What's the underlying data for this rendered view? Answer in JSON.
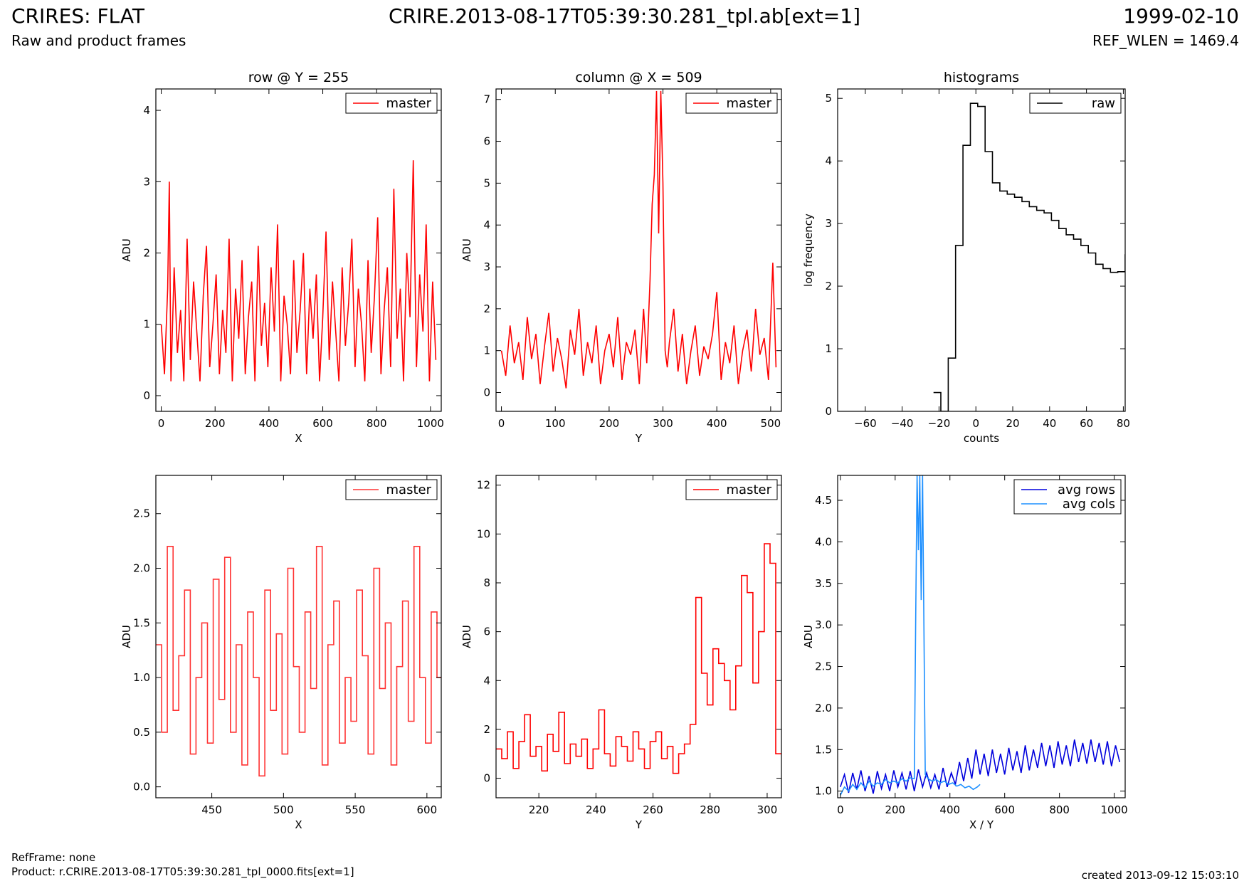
{
  "header": {
    "title": "CRIRES: FLAT",
    "subtitle": "Raw and product frames",
    "file_label": "CRIRE.2013-08-17T05:39:30.281_tpl.ab[ext=1]",
    "date": "1999-02-10",
    "ref_wlen": "REF_WLEN = 1469.4"
  },
  "footer": {
    "ref_frame": "RefFrame: none",
    "product": "Product: r.CRIRE.2013-08-17T05:39:30.281_tpl_0000.fits[ext=1]",
    "created": "created 2013-09-12 15:03:10"
  },
  "colors": {
    "master": "#ff0000",
    "master_zoom": "#ff3333",
    "raw": "#000000",
    "avg_rows": "#0000dd",
    "avg_cols": "#1e90ff"
  },
  "chart_data": [
    {
      "id": "row",
      "type": "line",
      "title": "row @ Y = 255",
      "xlabel": "X",
      "ylabel": "ADU",
      "xlim": [
        -20,
        1040
      ],
      "ylim": [
        -0.22,
        4.3
      ],
      "xticks": [
        0,
        200,
        400,
        600,
        800,
        1000
      ],
      "yticks": [
        0,
        1,
        2,
        3,
        4
      ],
      "legend": [
        "master"
      ],
      "legend_placement": "top-right",
      "series": [
        {
          "name": "master",
          "color": "#ff0000",
          "step": false,
          "x": [
            0,
            12,
            24,
            30,
            36,
            48,
            60,
            72,
            84,
            96,
            108,
            120,
            132,
            144,
            156,
            168,
            180,
            192,
            204,
            216,
            228,
            240,
            252,
            264,
            276,
            288,
            300,
            312,
            324,
            336,
            348,
            360,
            372,
            384,
            396,
            408,
            420,
            432,
            444,
            456,
            468,
            480,
            492,
            504,
            516,
            528,
            540,
            552,
            564,
            576,
            588,
            600,
            612,
            624,
            636,
            648,
            660,
            672,
            684,
            696,
            708,
            720,
            732,
            744,
            756,
            768,
            780,
            792,
            804,
            816,
            828,
            840,
            852,
            864,
            876,
            888,
            900,
            912,
            924,
            936,
            948,
            960,
            972,
            984,
            996,
            1008,
            1020
          ],
          "y": [
            1.0,
            0.3,
            1.5,
            3.0,
            0.2,
            1.8,
            0.6,
            1.2,
            0.2,
            2.2,
            0.5,
            1.6,
            0.9,
            0.2,
            1.4,
            2.1,
            0.4,
            1.0,
            1.7,
            0.3,
            1.2,
            0.6,
            2.2,
            0.2,
            1.5,
            0.8,
            1.9,
            0.3,
            1.1,
            1.6,
            0.2,
            2.1,
            0.7,
            1.3,
            0.4,
            1.8,
            0.9,
            2.4,
            0.2,
            1.4,
            1.0,
            0.3,
            1.9,
            0.6,
            1.2,
            2.0,
            0.3,
            1.5,
            0.8,
            1.7,
            0.2,
            1.1,
            2.3,
            0.5,
            1.6,
            0.9,
            0.2,
            1.8,
            0.7,
            1.3,
            2.2,
            0.4,
            1.5,
            1.0,
            0.2,
            1.9,
            0.6,
            1.4,
            2.5,
            0.3,
            1.2,
            1.8,
            0.4,
            2.9,
            0.8,
            1.5,
            0.2,
            2.0,
            1.1,
            3.3,
            0.4,
            1.7,
            0.9,
            2.4,
            0.2,
            1.6,
            0.5
          ]
        }
      ]
    },
    {
      "id": "column",
      "type": "line",
      "title": "column @ X = 509",
      "xlabel": "Y",
      "ylabel": "ADU",
      "xlim": [
        -10,
        520
      ],
      "ylim": [
        -0.45,
        7.25
      ],
      "xticks": [
        0,
        100,
        200,
        300,
        400,
        500
      ],
      "yticks": [
        0,
        1,
        2,
        3,
        4,
        5,
        6,
        7
      ],
      "legend": [
        "master"
      ],
      "legend_placement": "top-right",
      "series": [
        {
          "name": "master",
          "color": "#ff0000",
          "step": false,
          "x": [
            0,
            8,
            16,
            24,
            32,
            40,
            48,
            56,
            64,
            72,
            80,
            88,
            96,
            104,
            112,
            120,
            128,
            136,
            144,
            152,
            160,
            168,
            176,
            184,
            192,
            200,
            208,
            216,
            224,
            232,
            240,
            248,
            256,
            264,
            270,
            276,
            280,
            284,
            288,
            292,
            296,
            300,
            304,
            308,
            312,
            320,
            328,
            336,
            344,
            352,
            360,
            368,
            376,
            384,
            392,
            400,
            408,
            416,
            424,
            432,
            440,
            448,
            456,
            464,
            472,
            480,
            488,
            496,
            504,
            510
          ],
          "y": [
            1.0,
            0.4,
            1.6,
            0.7,
            1.2,
            0.3,
            1.8,
            0.8,
            1.4,
            0.2,
            1.1,
            1.9,
            0.5,
            1.3,
            0.8,
            0.1,
            1.5,
            0.9,
            2.0,
            0.4,
            1.2,
            0.7,
            1.6,
            0.2,
            1.0,
            1.4,
            0.6,
            1.8,
            0.3,
            1.2,
            0.9,
            1.5,
            0.2,
            2.0,
            0.7,
            2.7,
            4.5,
            5.2,
            7.2,
            3.8,
            7.2,
            5.0,
            1.0,
            0.6,
            1.2,
            2.0,
            0.5,
            1.4,
            0.2,
            1.0,
            1.6,
            0.4,
            1.1,
            0.8,
            1.4,
            2.4,
            0.3,
            1.2,
            0.7,
            1.6,
            0.2,
            1.0,
            1.5,
            0.5,
            2.0,
            0.9,
            1.3,
            0.3,
            3.1,
            0.6
          ]
        }
      ]
    },
    {
      "id": "histograms",
      "type": "line",
      "title": "histograms",
      "xlabel": "counts",
      "ylabel": "log frequency",
      "xlim": [
        -75,
        81
      ],
      "ylim": [
        0,
        5.15
      ],
      "xticks": [
        -60,
        -40,
        -20,
        0,
        20,
        40,
        60,
        80
      ],
      "yticks": [
        0,
        1,
        2,
        3,
        4,
        5
      ],
      "legend": [
        "raw"
      ],
      "legend_placement": "top-right",
      "series": [
        {
          "name": "raw",
          "color": "#000000",
          "step": true,
          "x": [
            -23,
            -19,
            -15,
            -11,
            -7,
            -3,
            1,
            5,
            9,
            13,
            17,
            21,
            25,
            29,
            33,
            37,
            41,
            45,
            49,
            53,
            57,
            61,
            65,
            69,
            73,
            77,
            81
          ],
          "y": [
            0.3,
            0.0,
            0.85,
            2.65,
            4.25,
            4.92,
            4.87,
            4.15,
            3.65,
            3.52,
            3.47,
            3.42,
            3.35,
            3.27,
            3.21,
            3.17,
            3.05,
            2.92,
            2.82,
            2.75,
            2.65,
            2.53,
            2.35,
            2.28,
            2.22,
            2.23,
            2.5
          ]
        }
      ]
    },
    {
      "id": "row_zoom",
      "type": "line",
      "title": "",
      "xlabel": "X",
      "ylabel": "ADU",
      "xlim": [
        411,
        610
      ],
      "ylim": [
        -0.1,
        2.85
      ],
      "xticks": [
        450,
        500,
        550,
        600
      ],
      "yticks": [
        0.0,
        0.5,
        1.0,
        1.5,
        2.0,
        2.5
      ],
      "legend": [
        "master"
      ],
      "legend_placement": "top-right",
      "series": [
        {
          "name": "master",
          "color": "#ff3333",
          "step": true,
          "x": [
            411,
            415,
            419,
            423,
            427,
            431,
            435,
            439,
            443,
            447,
            451,
            455,
            459,
            463,
            467,
            471,
            475,
            479,
            483,
            487,
            491,
            495,
            499,
            503,
            507,
            511,
            515,
            519,
            523,
            527,
            531,
            535,
            539,
            543,
            547,
            551,
            555,
            559,
            563,
            567,
            571,
            575,
            579,
            583,
            587,
            591,
            595,
            599,
            603,
            607
          ],
          "y": [
            1.3,
            0.5,
            2.2,
            0.7,
            1.2,
            1.8,
            0.3,
            1.0,
            1.5,
            0.4,
            1.9,
            0.8,
            2.1,
            0.5,
            1.3,
            0.2,
            1.6,
            1.0,
            0.1,
            1.8,
            0.7,
            1.4,
            0.3,
            2.0,
            1.1,
            0.5,
            1.6,
            0.9,
            2.2,
            0.2,
            1.3,
            1.7,
            0.4,
            1.0,
            0.6,
            1.8,
            1.2,
            0.3,
            2.0,
            0.9,
            1.5,
            0.2,
            1.1,
            1.7,
            0.6,
            2.2,
            1.0,
            0.4,
            1.6,
            1.0
          ]
        }
      ]
    },
    {
      "id": "column_zoom",
      "type": "line",
      "title": "",
      "xlabel": "Y",
      "ylabel": "ADU",
      "xlim": [
        205,
        305
      ],
      "ylim": [
        -0.8,
        12.4
      ],
      "xticks": [
        220,
        240,
        260,
        280,
        300
      ],
      "yticks": [
        0,
        2,
        4,
        6,
        8,
        10,
        12
      ],
      "legend": [
        "master"
      ],
      "legend_placement": "top-right",
      "series": [
        {
          "name": "master",
          "color": "#ff0000",
          "step": true,
          "x": [
            205,
            207,
            209,
            211,
            213,
            215,
            217,
            219,
            221,
            223,
            225,
            227,
            229,
            231,
            233,
            235,
            237,
            239,
            241,
            243,
            245,
            247,
            249,
            251,
            253,
            255,
            257,
            259,
            261,
            263,
            265,
            267,
            269,
            271,
            273,
            275,
            277,
            279,
            281,
            283,
            285,
            287,
            289,
            291,
            293,
            295,
            297,
            299,
            301,
            303
          ],
          "y": [
            1.2,
            0.8,
            1.9,
            0.4,
            1.5,
            2.6,
            0.9,
            1.3,
            0.3,
            1.8,
            1.1,
            2.7,
            0.6,
            1.4,
            0.9,
            1.6,
            0.4,
            1.2,
            2.8,
            1.0,
            0.5,
            1.7,
            1.3,
            0.7,
            1.9,
            1.2,
            0.4,
            1.5,
            1.9,
            0.8,
            1.3,
            0.2,
            1.0,
            1.4,
            2.2,
            7.4,
            4.3,
            3.0,
            5.3,
            4.7,
            4.0,
            2.8,
            4.6,
            8.3,
            7.6,
            3.9,
            6.0,
            9.6,
            8.8,
            1.0
          ]
        }
      ]
    },
    {
      "id": "averages",
      "type": "line",
      "title": "",
      "xlabel": "X / Y",
      "ylabel": "ADU",
      "xlim": [
        -10,
        1040
      ],
      "ylim": [
        0.92,
        4.8
      ],
      "xticks": [
        0,
        200,
        400,
        600,
        800,
        1000
      ],
      "yticks": [
        1.0,
        1.5,
        2.0,
        2.5,
        3.0,
        3.5,
        4.0,
        4.5
      ],
      "legend": [
        "avg rows",
        "avg cols"
      ],
      "legend_placement": "top-right",
      "series": [
        {
          "name": "avg rows",
          "color": "#0000dd",
          "step": false,
          "x": [
            0,
            15,
            30,
            45,
            60,
            75,
            90,
            105,
            120,
            135,
            150,
            165,
            180,
            195,
            210,
            225,
            240,
            255,
            270,
            285,
            300,
            315,
            330,
            345,
            360,
            375,
            390,
            405,
            420,
            435,
            450,
            465,
            480,
            495,
            510,
            525,
            540,
            555,
            570,
            585,
            600,
            615,
            630,
            645,
            660,
            675,
            690,
            705,
            720,
            735,
            750,
            765,
            780,
            795,
            810,
            825,
            840,
            855,
            870,
            885,
            900,
            915,
            930,
            945,
            960,
            975,
            990,
            1005,
            1020
          ],
          "y": [
            1.05,
            1.2,
            0.98,
            1.22,
            1.02,
            1.25,
            1.0,
            1.18,
            0.97,
            1.24,
            1.03,
            1.2,
            1.0,
            1.25,
            1.05,
            1.22,
            1.02,
            1.24,
            1.0,
            1.26,
            1.05,
            1.22,
            1.04,
            1.2,
            1.02,
            1.28,
            1.05,
            1.22,
            1.08,
            1.35,
            1.12,
            1.4,
            1.15,
            1.5,
            1.2,
            1.45,
            1.18,
            1.5,
            1.22,
            1.45,
            1.2,
            1.52,
            1.25,
            1.48,
            1.22,
            1.55,
            1.25,
            1.5,
            1.28,
            1.58,
            1.3,
            1.55,
            1.28,
            1.6,
            1.32,
            1.55,
            1.3,
            1.62,
            1.35,
            1.58,
            1.33,
            1.62,
            1.35,
            1.58,
            1.32,
            1.6,
            1.3,
            1.55,
            1.35
          ]
        },
        {
          "name": "avg cols",
          "color": "#1e90ff",
          "step": false,
          "x": [
            0,
            15,
            30,
            45,
            60,
            75,
            90,
            105,
            120,
            135,
            150,
            165,
            180,
            195,
            210,
            225,
            240,
            255,
            270,
            275,
            280,
            285,
            290,
            295,
            300,
            305,
            310,
            320,
            335,
            350,
            365,
            380,
            395,
            410,
            425,
            440,
            455,
            470,
            485,
            500,
            510
          ],
          "y": [
            0.95,
            1.05,
            1.0,
            1.08,
            1.02,
            1.1,
            1.04,
            1.12,
            1.06,
            1.1,
            1.08,
            1.14,
            1.1,
            1.12,
            1.1,
            1.15,
            1.12,
            1.16,
            1.15,
            3.1,
            4.8,
            3.9,
            4.8,
            3.3,
            4.8,
            3.0,
            1.2,
            1.15,
            1.12,
            1.14,
            1.1,
            1.12,
            1.08,
            1.1,
            1.06,
            1.08,
            1.04,
            1.06,
            1.02,
            1.05,
            1.08
          ]
        }
      ]
    }
  ]
}
